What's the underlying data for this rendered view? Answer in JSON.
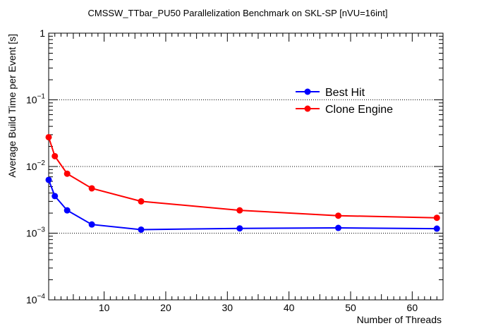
{
  "chart_data": {
    "type": "line",
    "title": "CMSSW_TTbar_PU50 Parallelization Benchmark on SKL-SP [nVU=16int]",
    "xlabel": "Number of Threads",
    "ylabel": "Average Build Time per Event [s]",
    "xlim": [
      1,
      65
    ],
    "ylim": [
      0.0001,
      1
    ],
    "yscale": "log",
    "grid": "horizontal dotted at decades",
    "legend_position": "top-right",
    "x_ticks": [
      10,
      20,
      30,
      40,
      50,
      60
    ],
    "y_ticks": [
      {
        "value": 0.0001,
        "base": "10",
        "exp": "−4"
      },
      {
        "value": 0.001,
        "base": "10",
        "exp": "−3"
      },
      {
        "value": 0.01,
        "base": "10",
        "exp": "−2"
      },
      {
        "value": 0.1,
        "base": "10",
        "exp": "−1"
      },
      {
        "value": 1,
        "base": "1",
        "exp": ""
      }
    ],
    "series": [
      {
        "name": "Best Hit",
        "color": "#0000ff",
        "x": [
          1,
          2,
          4,
          8,
          16,
          32,
          48,
          64
        ],
        "y": [
          0.0063,
          0.0036,
          0.0022,
          0.00135,
          0.00113,
          0.00118,
          0.0012,
          0.00117
        ]
      },
      {
        "name": "Clone Engine",
        "color": "#ff0000",
        "x": [
          1,
          2,
          4,
          8,
          16,
          32,
          48,
          64
        ],
        "y": [
          0.0275,
          0.0143,
          0.0078,
          0.0047,
          0.003,
          0.0022,
          0.00183,
          0.0017
        ]
      }
    ]
  }
}
